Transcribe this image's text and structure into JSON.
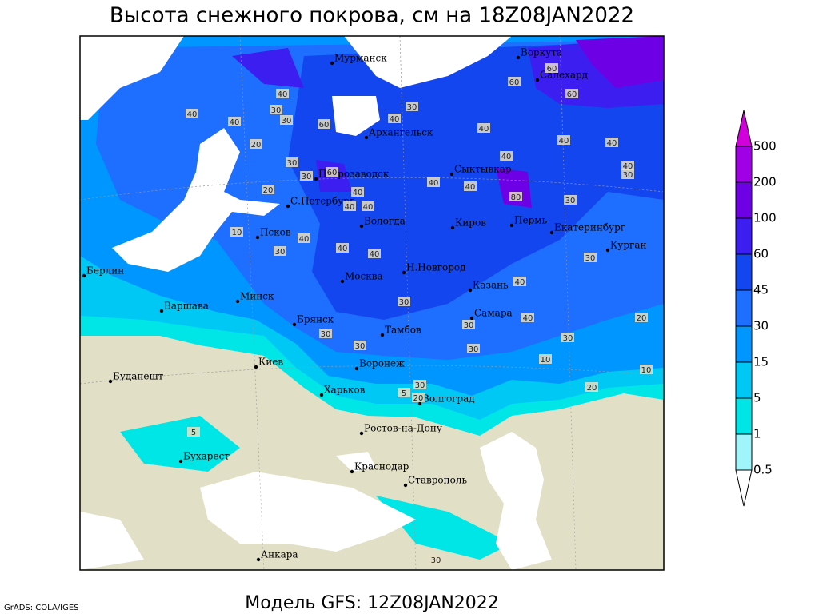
{
  "title": "Высота снежного покрова, см на 18Z08JAN2022",
  "footer": {
    "model": "Модель GFS: 12Z08JAN2022",
    "credit": "GrADS: COLA/IGES"
  },
  "cities": [
    "Мурманск",
    "Воркута",
    "Салехард",
    "Архангельск",
    "Петрозаводск",
    "Сыктывкар",
    "С.Петербург",
    "Вологда",
    "Киров",
    "Пермь",
    "Екатеринбург",
    "Курган",
    "Псков",
    "Берлин",
    "Н.Новгород",
    "Москва",
    "Казань",
    "Минск",
    "Варшава",
    "Брянск",
    "Самара",
    "Тамбов",
    "Киев",
    "Воронеж",
    "Будапешт",
    "Харьков",
    "Волгоград",
    "Ростов-на-Дону",
    "Бухарест",
    "Краснодар",
    "Ставрополь",
    "Анкара"
  ],
  "contour_labels": [
    40,
    40,
    30,
    40,
    30,
    60,
    20,
    30,
    30,
    20,
    60,
    40,
    40,
    40,
    10,
    40,
    30,
    40,
    40,
    40,
    40,
    40,
    40,
    80,
    30,
    40,
    60,
    60,
    60,
    40,
    40,
    40,
    30,
    30,
    30,
    40,
    40,
    30,
    30,
    30,
    30,
    30,
    30,
    10,
    20,
    10,
    20,
    30,
    20,
    5,
    30,
    5
  ],
  "legend": {
    "levels": [
      0.5,
      1,
      5,
      15,
      30,
      45,
      60,
      100,
      200,
      500
    ],
    "colors": [
      "#ffffff",
      "#a0f5fa",
      "#00e6e6",
      "#00c8f5",
      "#0096ff",
      "#1e6eff",
      "#1446f0",
      "#3c1ef0",
      "#6e00e6",
      "#a000e6",
      "#d200dc"
    ]
  }
}
